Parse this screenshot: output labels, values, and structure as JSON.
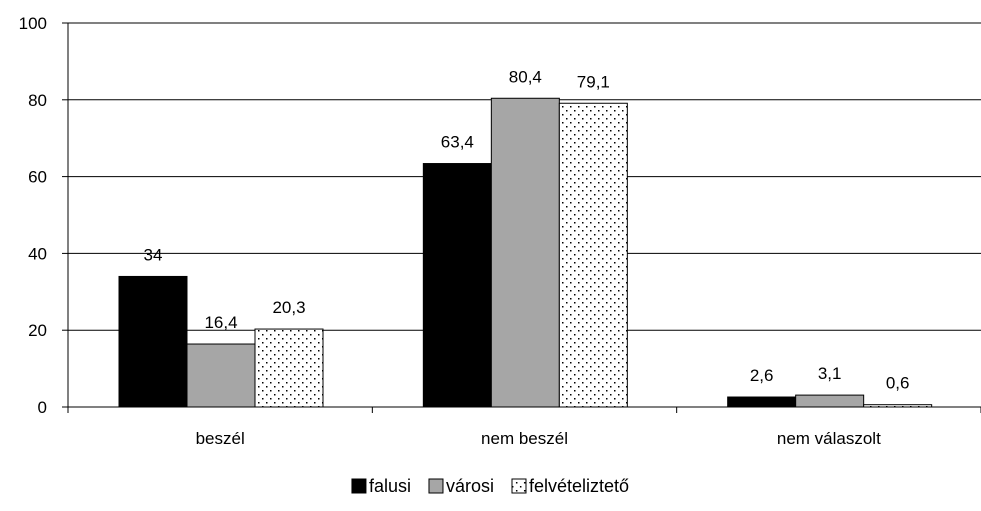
{
  "chart_data": {
    "type": "bar",
    "categories": [
      "beszél",
      "nem beszél",
      "nem válaszolt"
    ],
    "series": [
      {
        "name": "falusi",
        "values": [
          34,
          63.4,
          2.6
        ],
        "labels": [
          "34",
          "63,4",
          "2,6"
        ],
        "color": "#000000",
        "pattern": "solid"
      },
      {
        "name": "városi",
        "values": [
          16.4,
          80.4,
          3.1
        ],
        "labels": [
          "16,4",
          "80,4",
          "3,1"
        ],
        "color": "#a6a6a6",
        "pattern": "solid"
      },
      {
        "name": "felvételiztető",
        "values": [
          20.3,
          79.1,
          0.6
        ],
        "labels": [
          "20,3",
          "79,1",
          "0,6"
        ],
        "color": "#ffffff",
        "pattern": "dotted"
      }
    ],
    "y_ticks": [
      "0",
      "20",
      "40",
      "60",
      "80",
      "100"
    ],
    "ylim": [
      0,
      100
    ],
    "grid": true,
    "legend_position": "bottom"
  }
}
